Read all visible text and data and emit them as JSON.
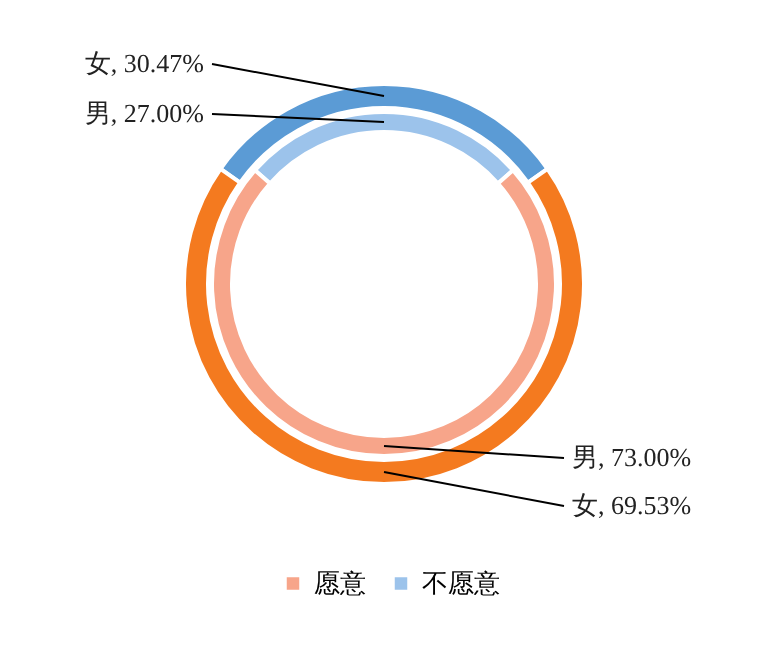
{
  "chart_data": {
    "type": "donut",
    "categories": [
      "愿意",
      "不愿意"
    ],
    "legend": "bottom",
    "series": [
      {
        "colors": [
          "#f47a1f",
          "#5b9bd5"
        ],
        "values": [
          69.53,
          30.47
        ],
        "value_labels": [
          "女, 69.53%",
          "女, 30.47%"
        ]
      },
      {
        "colors": [
          "#f7a58a",
          "#9cc3eb"
        ],
        "values": [
          73.0,
          27.0
        ],
        "value_labels": [
          "男, 73.00%",
          "男, 27.00%"
        ]
      }
    ]
  }
}
